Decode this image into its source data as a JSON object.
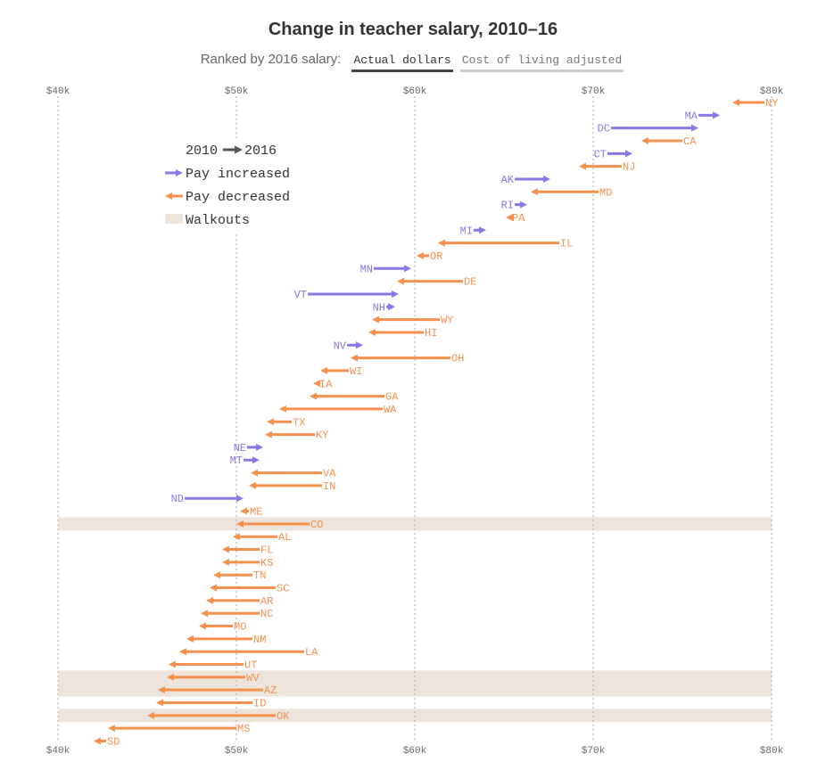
{
  "header": {
    "title": "Change in teacher salary, 2010–16",
    "subtitle": "Ranked by 2016 salary:",
    "tabs": [
      "Actual dollars",
      "Cost of living adjusted"
    ],
    "active_tab": 0
  },
  "legend": {
    "years_from": "2010",
    "years_to": "2016",
    "increased": "Pay increased",
    "decreased": "Pay decreased",
    "walkouts": "Walkouts"
  },
  "colors": {
    "increase": "#8877e6",
    "decrease": "#f5904f",
    "walkout": "#ede4dc",
    "grid": "#aaaaaa",
    "legend_arrow": "#555555"
  },
  "chart_data": {
    "type": "arrow",
    "xlim": [
      40000,
      80000
    ],
    "tick_values": [
      40000,
      50000,
      60000,
      70000,
      80000
    ],
    "tick_labels": [
      "$40k",
      "$50k",
      "$60k",
      "$70k",
      "$80k"
    ],
    "grid": true,
    "legend_position": "top-left",
    "series": [
      {
        "state": "NY",
        "y2010": 79600,
        "y2016": 77800,
        "walkout": false
      },
      {
        "state": "MA",
        "y2010": 75900,
        "y2016": 77100,
        "walkout": false
      },
      {
        "state": "DC",
        "y2010": 71000,
        "y2016": 75900,
        "walkout": false
      },
      {
        "state": "CA",
        "y2010": 75000,
        "y2016": 72700,
        "walkout": false
      },
      {
        "state": "CT",
        "y2010": 70800,
        "y2016": 72200,
        "walkout": false
      },
      {
        "state": "NJ",
        "y2010": 71600,
        "y2016": 69200,
        "walkout": false
      },
      {
        "state": "AK",
        "y2010": 65600,
        "y2016": 67600,
        "walkout": false
      },
      {
        "state": "MD",
        "y2010": 70300,
        "y2016": 66500,
        "walkout": false
      },
      {
        "state": "RI",
        "y2010": 65600,
        "y2016": 66300,
        "walkout": false
      },
      {
        "state": "PA",
        "y2010": 65400,
        "y2016": 65100,
        "walkout": false
      },
      {
        "state": "MI",
        "y2010": 63300,
        "y2016": 64000,
        "walkout": false
      },
      {
        "state": "IL",
        "y2010": 68100,
        "y2016": 61300,
        "walkout": false
      },
      {
        "state": "OR",
        "y2010": 60800,
        "y2016": 60100,
        "walkout": false
      },
      {
        "state": "MN",
        "y2010": 57700,
        "y2016": 59800,
        "walkout": false
      },
      {
        "state": "DE",
        "y2010": 62700,
        "y2016": 59000,
        "walkout": false
      },
      {
        "state": "VT",
        "y2010": 54000,
        "y2016": 59100,
        "walkout": false
      },
      {
        "state": "NH",
        "y2010": 58400,
        "y2016": 58900,
        "walkout": false
      },
      {
        "state": "WY",
        "y2010": 61400,
        "y2016": 57600,
        "walkout": false
      },
      {
        "state": "HI",
        "y2010": 60500,
        "y2016": 57400,
        "walkout": false
      },
      {
        "state": "NV",
        "y2010": 56200,
        "y2016": 57100,
        "walkout": false
      },
      {
        "state": "OH",
        "y2010": 62000,
        "y2016": 56400,
        "walkout": false
      },
      {
        "state": "WI",
        "y2010": 56300,
        "y2016": 54700,
        "walkout": false
      },
      {
        "state": "IA",
        "y2010": 54600,
        "y2016": 54300,
        "walkout": false
      },
      {
        "state": "GA",
        "y2010": 58300,
        "y2016": 54100,
        "walkout": false
      },
      {
        "state": "WA",
        "y2010": 58200,
        "y2016": 52400,
        "walkout": false
      },
      {
        "state": "TX",
        "y2010": 53100,
        "y2016": 51700,
        "walkout": false
      },
      {
        "state": "KY",
        "y2010": 54400,
        "y2016": 51600,
        "walkout": false
      },
      {
        "state": "NE",
        "y2010": 50600,
        "y2016": 51500,
        "walkout": false
      },
      {
        "state": "MT",
        "y2010": 50400,
        "y2016": 51300,
        "walkout": false
      },
      {
        "state": "VA",
        "y2010": 54800,
        "y2016": 50800,
        "walkout": false
      },
      {
        "state": "IN",
        "y2010": 54800,
        "y2016": 50700,
        "walkout": false
      },
      {
        "state": "ND",
        "y2010": 47100,
        "y2016": 50400,
        "walkout": false
      },
      {
        "state": "ME",
        "y2010": 50700,
        "y2016": 50200,
        "walkout": false
      },
      {
        "state": "CO",
        "y2010": 54100,
        "y2016": 50000,
        "walkout": true
      },
      {
        "state": "AL",
        "y2010": 52300,
        "y2016": 49800,
        "walkout": false
      },
      {
        "state": "FL",
        "y2010": 51300,
        "y2016": 49200,
        "walkout": false
      },
      {
        "state": "KS",
        "y2010": 51300,
        "y2016": 49200,
        "walkout": false
      },
      {
        "state": "TN",
        "y2010": 50900,
        "y2016": 48700,
        "walkout": false
      },
      {
        "state": "SC",
        "y2010": 52200,
        "y2016": 48500,
        "walkout": false
      },
      {
        "state": "AR",
        "y2010": 51300,
        "y2016": 48300,
        "walkout": false
      },
      {
        "state": "NC",
        "y2010": 51300,
        "y2016": 48000,
        "walkout": false
      },
      {
        "state": "MO",
        "y2010": 49800,
        "y2016": 47900,
        "walkout": false
      },
      {
        "state": "NM",
        "y2010": 50900,
        "y2016": 47200,
        "walkout": false
      },
      {
        "state": "LA",
        "y2010": 53800,
        "y2016": 46800,
        "walkout": false
      },
      {
        "state": "UT",
        "y2010": 50400,
        "y2016": 46200,
        "walkout": false
      },
      {
        "state": "WV",
        "y2010": 50500,
        "y2016": 46100,
        "walkout": true
      },
      {
        "state": "AZ",
        "y2010": 51500,
        "y2016": 45600,
        "walkout": true
      },
      {
        "state": "ID",
        "y2010": 50900,
        "y2016": 45500,
        "walkout": false
      },
      {
        "state": "OK",
        "y2010": 52200,
        "y2016": 45000,
        "walkout": true
      },
      {
        "state": "MS",
        "y2010": 50000,
        "y2016": 42800,
        "walkout": false
      },
      {
        "state": "SD",
        "y2010": 42700,
        "y2016": 42000,
        "walkout": false
      }
    ]
  }
}
